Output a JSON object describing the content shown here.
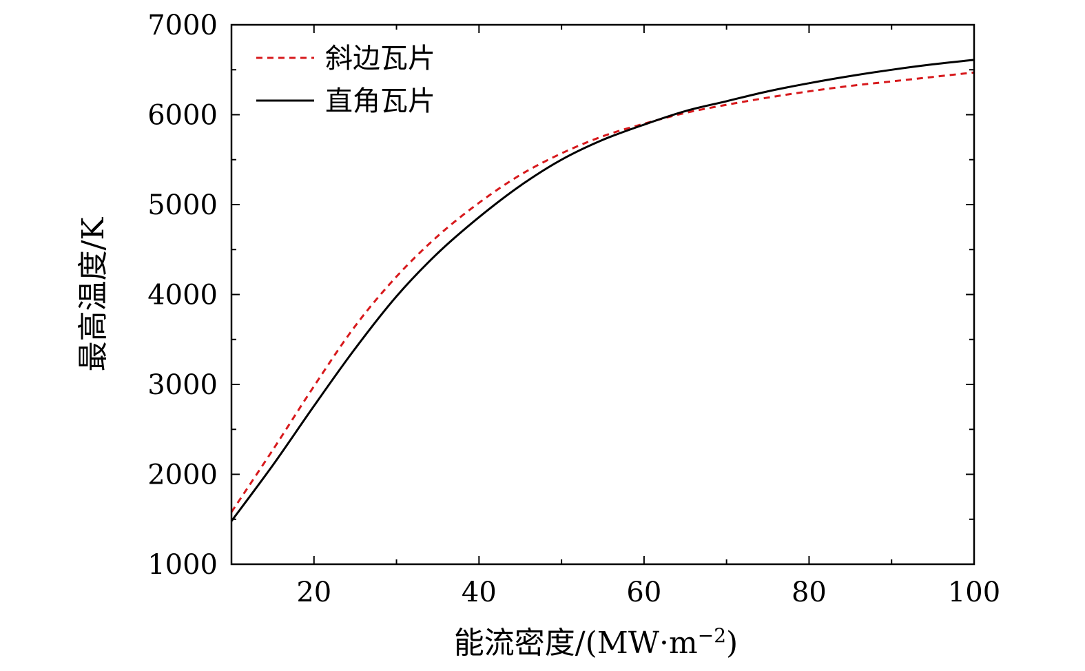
{
  "chart_data": {
    "type": "line",
    "title": "",
    "xlabel": "能流密度/(MW·m",
    "xlabel_sup": "−2",
    "xlabel_close": ")",
    "ylabel": "最高温度/K",
    "xlim": [
      10,
      100
    ],
    "ylim": [
      1000,
      7000
    ],
    "x_ticks": [
      20,
      40,
      60,
      80,
      100
    ],
    "x_tick_labels": [
      "20",
      "40",
      "60",
      "80",
      "100"
    ],
    "y_ticks": [
      1000,
      2000,
      3000,
      4000,
      5000,
      6000,
      7000
    ],
    "y_tick_labels": [
      "1000",
      "2000",
      "3000",
      "4000",
      "5000",
      "6000",
      "7000"
    ],
    "grid": false,
    "legend_position": "top-left",
    "series": [
      {
        "name": "斜边瓦片",
        "color": "#d7191c",
        "style": "dashed",
        "x": [
          10,
          15,
          20,
          25,
          30,
          35,
          40,
          45,
          50,
          55,
          60,
          65,
          70,
          75,
          80,
          85,
          90,
          95,
          100
        ],
        "y": [
          1580,
          2270,
          2980,
          3650,
          4200,
          4650,
          5020,
          5330,
          5570,
          5760,
          5900,
          6020,
          6110,
          6190,
          6260,
          6320,
          6370,
          6420,
          6470
        ]
      },
      {
        "name": "直角瓦片",
        "color": "#000000",
        "style": "solid",
        "x": [
          10,
          15,
          20,
          25,
          30,
          35,
          40,
          45,
          50,
          55,
          60,
          65,
          70,
          75,
          80,
          85,
          90,
          95,
          100
        ],
        "y": [
          1480,
          2100,
          2760,
          3400,
          3980,
          4460,
          4860,
          5210,
          5500,
          5720,
          5890,
          6040,
          6150,
          6260,
          6350,
          6430,
          6500,
          6560,
          6610
        ]
      }
    ]
  }
}
